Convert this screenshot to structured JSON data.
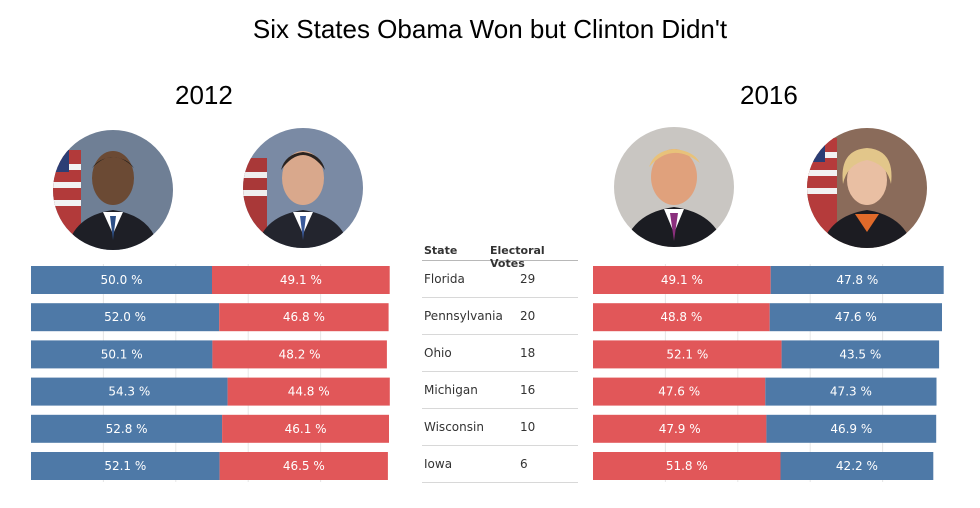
{
  "title": "Six States Obama Won but Clinton Didn't",
  "years": {
    "left": "2012",
    "right": "2016"
  },
  "table": {
    "headers": {
      "state": "State",
      "votes": "Electoral Votes"
    },
    "rows": [
      {
        "state": "Florida",
        "votes": "29"
      },
      {
        "state": "Pennsylvania",
        "votes": "20"
      },
      {
        "state": "Ohio",
        "votes": "18"
      },
      {
        "state": "Michigan",
        "votes": "16"
      },
      {
        "state": "Wisconsin",
        "votes": "10"
      },
      {
        "state": "Iowa",
        "votes": "6"
      }
    ]
  },
  "colors": {
    "democrat": "#4e79a7",
    "republican": "#e15759"
  },
  "chart_data": [
    {
      "type": "bar",
      "stacked": true,
      "orientation": "horizontal",
      "panel": "2012",
      "categories": [
        "Florida",
        "Pennsylvania",
        "Ohio",
        "Michigan",
        "Wisconsin",
        "Iowa"
      ],
      "series": [
        {
          "color": "#4e79a7",
          "values": [
            50.0,
            52.0,
            50.1,
            54.3,
            52.8,
            52.1
          ],
          "labels": [
            "50.0 %",
            "52.0 %",
            "50.1 %",
            "54.3 %",
            "52.8 %",
            "52.1 %"
          ]
        },
        {
          "color": "#e15759",
          "values": [
            49.1,
            46.8,
            48.2,
            44.8,
            46.1,
            46.5
          ],
          "labels": [
            "49.1 %",
            "46.8 %",
            "48.2 %",
            "44.8 %",
            "46.1 %",
            "46.5 %"
          ]
        }
      ]
    },
    {
      "type": "bar",
      "stacked": true,
      "orientation": "horizontal",
      "panel": "2016",
      "categories": [
        "Florida",
        "Pennsylvania",
        "Ohio",
        "Michigan",
        "Wisconsin",
        "Iowa"
      ],
      "series": [
        {
          "color": "#e15759",
          "values": [
            49.1,
            48.8,
            52.1,
            47.6,
            47.9,
            51.8
          ],
          "labels": [
            "49.1 %",
            "48.8 %",
            "52.1 %",
            "47.6 %",
            "47.9 %",
            "51.8 %"
          ]
        },
        {
          "color": "#4e79a7",
          "values": [
            47.8,
            47.6,
            43.5,
            47.3,
            46.9,
            42.2
          ],
          "labels": [
            "47.8 %",
            "47.6 %",
            "43.5 %",
            "47.3 %",
            "46.9 %",
            "42.2 %"
          ]
        }
      ]
    }
  ]
}
